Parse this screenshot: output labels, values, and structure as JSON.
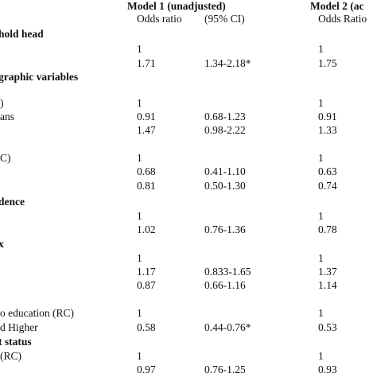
{
  "header": {
    "model1": "Model 1 (unadjusted)",
    "model2": "Model 2 (ac",
    "col_or": "Odds ratio",
    "col_ci": "(95% CI)",
    "col_or2": "Odds Ratio"
  },
  "sections": [
    {
      "title": "hold head",
      "rows": [
        {
          "or": "1",
          "or2": "1"
        },
        {
          "or": "1.71",
          "ci": "1.34-2.18*",
          "or2": "1.75"
        }
      ]
    },
    {
      "title": "graphic variables",
      "rows": [
        {
          "label": ")",
          "or": "1",
          "or2": "1"
        },
        {
          "label": "ans",
          "or": "0.91",
          "ci": "0.68-1.23",
          "or2": "0.91"
        },
        {
          "or": "1.47",
          "ci": "0.98-2.22",
          "or2": "1.33"
        },
        {
          "label": "C)",
          "or": "1",
          "or2": "1"
        },
        {
          "or": "0.68",
          "ci": "0.41-1.10",
          "or2": "0.63"
        },
        {
          "or": "0.81",
          "ci": "0.50-1.30",
          "or2": "0.74"
        }
      ]
    },
    {
      "title": "dence",
      "rows": [
        {
          "or": "1",
          "or2": "1"
        },
        {
          "or": "1.02",
          "ci": "0.76-1.36",
          "or2": "0.78"
        }
      ]
    },
    {
      "title": "x",
      "rows": [
        {
          "or": "1",
          "or2": "1"
        },
        {
          "or": "1.17",
          "ci": "0.833-1.65",
          "or2": "1.37"
        },
        {
          "or": "0.87",
          "ci": "0.66-1.16",
          "or2": "1.14"
        },
        {
          "label": "o education (RC)",
          "or": "1",
          "or2": "1"
        },
        {
          "label": "d Higher",
          "or": "0.58",
          "ci": "0.44-0.76*",
          "or2": "0.53"
        }
      ]
    },
    {
      "title": "t status",
      "rows": [
        {
          "label": "(RC)",
          "or": "1",
          "or2": "1"
        },
        {
          "or": "0.97",
          "ci": "0.76-1.25",
          "or2": "0.93"
        }
      ]
    }
  ]
}
